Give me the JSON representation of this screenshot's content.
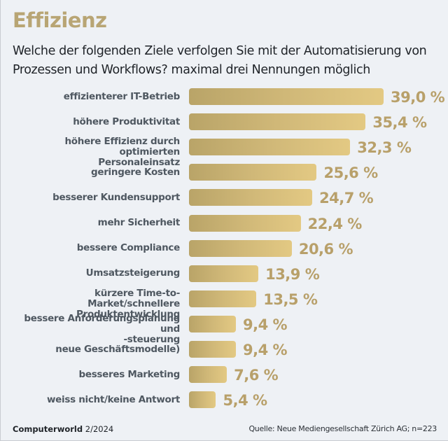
{
  "header": {
    "title": "Effizienz",
    "subtitle": "Welche der folgenden Ziele verfolgen Sie mit der Automatisierung von Prozessen und Workflows? maximal drei Nennungen möglich"
  },
  "footer": {
    "publication": "Computerworld",
    "issue": "2/2024",
    "source": "Quelle: Neue Mediengesellschaft Zürich AG; n=223"
  },
  "colors": {
    "title": "#b8a574",
    "bar_start": "#b9a468",
    "bar_end": "#e3c983",
    "value_label": "#b8a06a",
    "category_label": "#4f5861",
    "background": "#eef1f5"
  },
  "chart_data": {
    "type": "bar",
    "orientation": "horizontal",
    "title": "Effizienz",
    "subtitle": "Welche der folgenden Ziele verfolgen Sie mit der Automatisierung von Prozessen und Workflows? maximal drei Nennungen möglich",
    "xlabel": "",
    "ylabel": "",
    "unit": "%",
    "xlim": [
      0,
      39.0
    ],
    "grid": false,
    "legend": "none",
    "categories": [
      [
        "effizienterer IT-Betrieb"
      ],
      [
        "höhere Produktivitat"
      ],
      [
        "höhere Effizienz durch optimierten",
        "Personaleinsatz"
      ],
      [
        "geringere Kosten"
      ],
      [
        "besserer Kundensupport"
      ],
      [
        "mehr Sicherheit"
      ],
      [
        "bessere Compliance"
      ],
      [
        "Umsatzsteigerung"
      ],
      [
        "kürzere Time-to-Market/schnellere",
        "Produktentwicklung"
      ],
      [
        "bessere Anforderungsplanung und",
        "-steuerung"
      ],
      [
        "neue Geschäftsmodelle)"
      ],
      [
        "besseres Marketing"
      ],
      [
        "weiss nicht/keine Antwort"
      ]
    ],
    "values": [
      39.0,
      35.4,
      32.3,
      25.6,
      24.7,
      22.4,
      20.6,
      13.9,
      13.5,
      9.4,
      9.4,
      7.6,
      5.4
    ],
    "value_labels": [
      "39,0 %",
      "35,4 %",
      "32,3 %",
      "25,6 %",
      "24,7 %",
      "22,4 %",
      "20,6 %",
      "13,9 %",
      "13,5 %",
      "9,4 %",
      "9,4 %",
      "7,6 %",
      "5,4 %"
    ]
  }
}
